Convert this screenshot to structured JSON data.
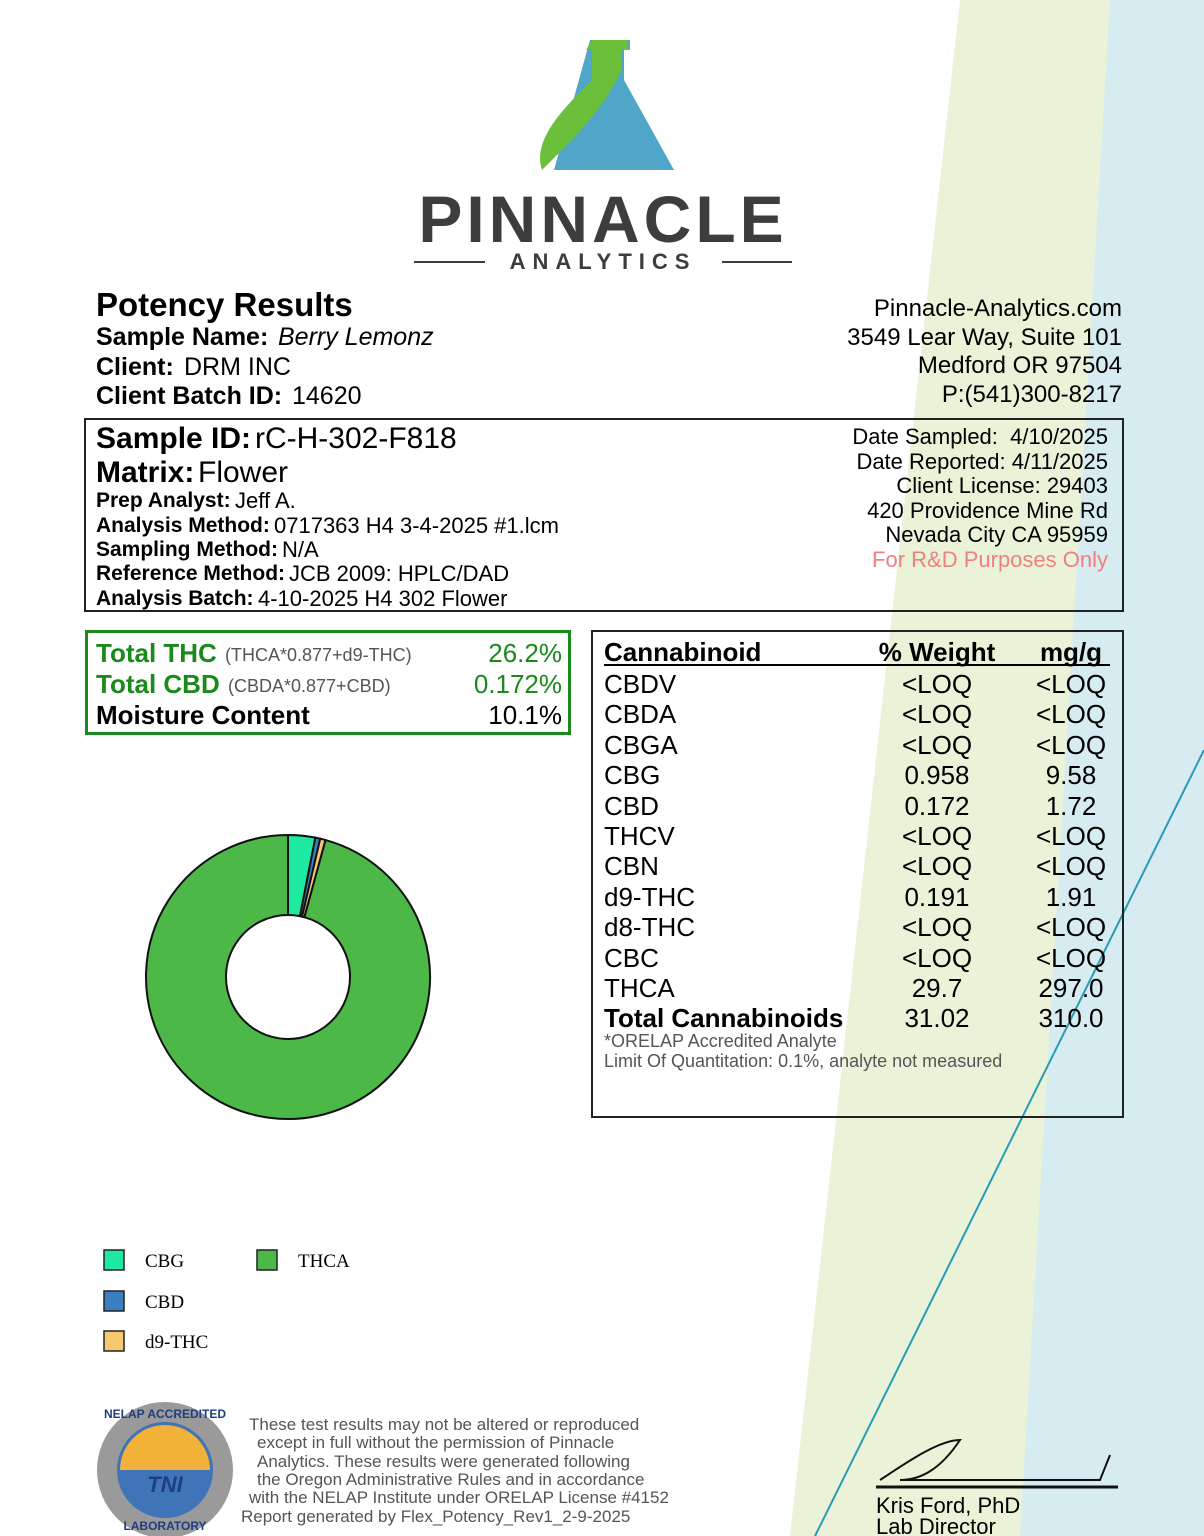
{
  "logo": {
    "name": "PINNACLE",
    "tagline": "ANALYTICS"
  },
  "header": {
    "title": "Potency Results",
    "fields": [
      {
        "label": "Sample Name:",
        "value": "Berry Lemonz"
      },
      {
        "label": "Client:",
        "value": "DRM INC"
      },
      {
        "label": "Client Batch ID:",
        "value": "14620"
      }
    ]
  },
  "lab": {
    "lines": [
      "Pinnacle-Analytics.com",
      "3549 Lear Way, Suite 101",
      "Medford OR 97504",
      "P:(541)300-8217"
    ]
  },
  "sample": {
    "fields": [
      {
        "label": "Sample ID:",
        "value": "rC-H-302-F818"
      },
      {
        "label": "Matrix:",
        "value": "Flower"
      },
      {
        "label": "Prep Analyst:",
        "value": "Jeff A."
      },
      {
        "label": "Analysis Method:",
        "value": "0717363 H4 3-4-2025 #1.lcm"
      },
      {
        "label": "Sampling Method:",
        "value": "N/A"
      },
      {
        "label": "Reference Method:",
        "value": "JCB 2009: HPLC/DAD"
      },
      {
        "label": "Analysis Batch:",
        "value": "4-10-2025 H4 302 Flower"
      }
    ],
    "info": [
      "Date Sampled:  4/10/2025",
      "Date Reported: 4/11/2025",
      "Client License: 29403",
      "420 Providence Mine Rd",
      "Nevada City CA 95959"
    ],
    "note": "For R&D Purposes Only"
  },
  "summary": {
    "rows": [
      {
        "label": "Total THC",
        "formula": "(THCA*0.877+d9-THC)",
        "value": "26.2%"
      },
      {
        "label": "Total CBD",
        "formula": "(CBDA*0.877+CBD)",
        "value": "0.172%"
      },
      {
        "label": "Moisture Content",
        "value": "10.1%"
      }
    ]
  },
  "table": {
    "headers": [
      "Cannabinoid",
      "% Weight",
      "mg/g"
    ],
    "rows": [
      [
        "CBDV",
        "<LOQ",
        "<LOQ"
      ],
      [
        "CBDA",
        "<LOQ",
        "<LOQ"
      ],
      [
        "CBGA",
        "<LOQ",
        "<LOQ"
      ],
      [
        "CBG",
        "0.958",
        "9.58"
      ],
      [
        "CBD",
        "0.172",
        "1.72"
      ],
      [
        "THCV",
        "<LOQ",
        "<LOQ"
      ],
      [
        "CBN",
        "<LOQ",
        "<LOQ"
      ],
      [
        "d9-THC",
        "0.191",
        "1.91"
      ],
      [
        "d8-THC",
        "<LOQ",
        "<LOQ"
      ],
      [
        "CBC",
        "<LOQ",
        "<LOQ"
      ],
      [
        "THCA",
        "29.7",
        "297.0"
      ]
    ],
    "total": [
      "Total Cannabinoids",
      "31.02",
      "310.0"
    ],
    "notes": [
      "*ORELAP Accredited Analyte",
      "Limit Of Quantitation: 0.1%, analyte not measured"
    ]
  },
  "chart_data": {
    "type": "donut",
    "categories": [
      "CBG",
      "CBD",
      "d9-THC",
      "THCA"
    ],
    "values": [
      0.958,
      0.172,
      0.191,
      29.7
    ],
    "colors": [
      "#1de9a0",
      "#3a7fc0",
      "#f8c870",
      "#4cb848"
    ]
  },
  "footer": {
    "badge": {
      "top": "NELAP ACCREDITED",
      "center": "TNI",
      "bottom": "LABORATORY"
    },
    "disclaimer": [
      "These test results may not be altered or reproduced",
      "except in full without the permission of Pinnacle",
      "Analytics. These results were generated following",
      "the Oregon Administrative Rules and in accordance",
      "with the NELAP Institute under ORELAP License #4152",
      "Report generated by Flex_Potency_Rev1_2-9-2025"
    ],
    "signer": "Kris Ford, PhD",
    "role": "Lab Director"
  }
}
